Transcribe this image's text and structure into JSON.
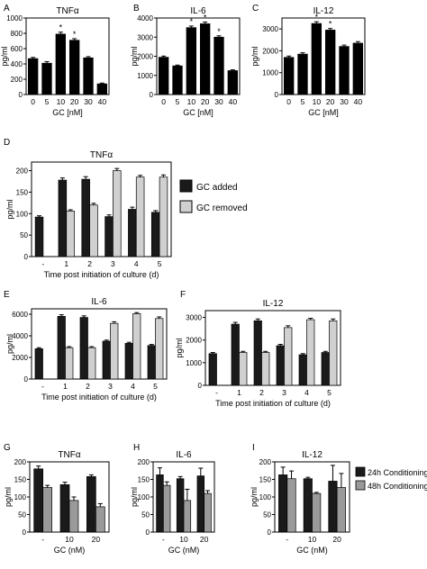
{
  "figure": {
    "legend_d": {
      "added": "GC added",
      "removed": "GC removed",
      "added_color": "#1a1a1a",
      "removed_color": "#d0d0d0"
    },
    "legend_g": {
      "c24": "24h Conditioning",
      "c48": "48h Conditioning",
      "c24_color": "#1a1a1a",
      "c48_color": "#9a9a9a"
    }
  },
  "chart_data": [
    {
      "panel": "A",
      "type": "bar",
      "title": "TNFα",
      "xlabel": "GC [nM]",
      "ylabel": "pg/ml",
      "categories": [
        "0",
        "5",
        "10",
        "20",
        "30",
        "40"
      ],
      "ylim": [
        0,
        1000
      ],
      "yticks": [
        0,
        200,
        400,
        600,
        800,
        1000
      ],
      "values": [
        470,
        410,
        790,
        710,
        480,
        140
      ],
      "errors": [
        15,
        20,
        25,
        20,
        15,
        10
      ],
      "stars": [
        "",
        "",
        "*",
        "*",
        "",
        ""
      ],
      "colors": [
        "#000000"
      ]
    },
    {
      "panel": "B",
      "type": "bar",
      "title": "IL-6",
      "xlabel": "GC [nM]",
      "ylabel": "pg/ml",
      "categories": [
        "0",
        "5",
        "10",
        "20",
        "30",
        "40"
      ],
      "ylim": [
        0,
        4000
      ],
      "yticks": [
        0,
        1000,
        2000,
        3000,
        4000
      ],
      "values": [
        1950,
        1500,
        3500,
        3700,
        3000,
        1250
      ],
      "errors": [
        60,
        40,
        80,
        90,
        70,
        40
      ],
      "stars": [
        "",
        "",
        "*",
        "*",
        "*",
        ""
      ],
      "colors": [
        "#000000"
      ]
    },
    {
      "panel": "C",
      "type": "bar",
      "title": "IL-12",
      "xlabel": "GC [nM]",
      "ylabel": "pg/ml",
      "categories": [
        "0",
        "5",
        "10",
        "20",
        "30",
        "40"
      ],
      "ylim": [
        0,
        3500
      ],
      "yticks": [
        0,
        1000,
        2000,
        3000
      ],
      "values": [
        1700,
        1850,
        3250,
        2950,
        2200,
        2350
      ],
      "errors": [
        60,
        60,
        80,
        70,
        60,
        70
      ],
      "stars": [
        "",
        "",
        "*",
        "*",
        "",
        ""
      ],
      "colors": [
        "#000000"
      ]
    },
    {
      "panel": "D",
      "type": "bar",
      "title": "TNFα",
      "xlabel": "Time post initiation of culture (d)",
      "ylabel": "pg/ml",
      "categories": [
        "-",
        "1",
        "2",
        "3",
        "4",
        "5"
      ],
      "ylim": [
        0,
        220
      ],
      "yticks": [
        0,
        50,
        100,
        150,
        200
      ],
      "series": [
        {
          "name": "GC added",
          "color": "#1a1a1a",
          "values": [
            92,
            178,
            180,
            93,
            110,
            103
          ],
          "errors": [
            3,
            5,
            6,
            4,
            5,
            4
          ]
        },
        {
          "name": "GC removed",
          "color": "#d0d0d0",
          "values": [
            null,
            106,
            120,
            200,
            185,
            185
          ],
          "errors": [
            null,
            3,
            4,
            5,
            4,
            5
          ]
        }
      ]
    },
    {
      "panel": "E",
      "type": "bar",
      "title": "IL-6",
      "xlabel": "Time post initiation of culture (d)",
      "ylabel": "pg/ml",
      "categories": [
        "-",
        "1",
        "2",
        "3",
        "4",
        "5"
      ],
      "ylim": [
        0,
        6500
      ],
      "yticks": [
        0,
        2000,
        4000,
        6000
      ],
      "series": [
        {
          "name": "GC added",
          "color": "#1a1a1a",
          "values": [
            2800,
            5800,
            5700,
            3500,
            3300,
            3100
          ],
          "errors": [
            100,
            150,
            150,
            100,
            100,
            100
          ]
        },
        {
          "name": "GC removed",
          "color": "#d0d0d0",
          "values": [
            null,
            2900,
            2900,
            5150,
            6050,
            5600
          ],
          "errors": [
            null,
            100,
            100,
            150,
            100,
            150
          ]
        }
      ]
    },
    {
      "panel": "F",
      "type": "bar",
      "title": "IL-12",
      "xlabel": "Time post initiation of culture (d)",
      "ylabel": "pg/ml",
      "categories": [
        "-",
        "1",
        "2",
        "3",
        "4",
        "5"
      ],
      "ylim": [
        0,
        3300
      ],
      "yticks": [
        0,
        1000,
        2000,
        3000
      ],
      "series": [
        {
          "name": "GC added",
          "color": "#1a1a1a",
          "values": [
            1400,
            2700,
            2850,
            1750,
            1350,
            1450
          ],
          "errors": [
            50,
            80,
            80,
            60,
            50,
            50
          ]
        },
        {
          "name": "GC removed",
          "color": "#d0d0d0",
          "values": [
            null,
            1450,
            1450,
            2550,
            2900,
            2850
          ],
          "errors": [
            null,
            50,
            50,
            80,
            60,
            80
          ]
        }
      ]
    },
    {
      "panel": "G",
      "type": "bar",
      "title": "TNFα",
      "xlabel": "GC (nM)",
      "ylabel": "pg/ml",
      "categories": [
        "-",
        "10",
        "20"
      ],
      "ylim": [
        0,
        200
      ],
      "yticks": [
        0,
        50,
        100,
        150,
        200
      ],
      "series": [
        {
          "name": "24h Conditioning",
          "color": "#1a1a1a",
          "values": [
            180,
            135,
            158
          ],
          "errors": [
            8,
            7,
            5
          ]
        },
        {
          "name": "48h Conditioning",
          "color": "#9a9a9a",
          "values": [
            127,
            90,
            72
          ],
          "errors": [
            6,
            10,
            9
          ]
        }
      ]
    },
    {
      "panel": "H",
      "type": "bar",
      "title": "IL-6",
      "xlabel": "GC (nM)",
      "ylabel": "pg/ml",
      "categories": [
        "-",
        "10",
        "20"
      ],
      "ylim": [
        0,
        200
      ],
      "yticks": [
        0,
        50,
        100,
        150,
        200
      ],
      "series": [
        {
          "name": "24h Conditioning",
          "color": "#1a1a1a",
          "values": [
            163,
            152,
            160
          ],
          "errors": [
            20,
            6,
            22
          ]
        },
        {
          "name": "48h Conditioning",
          "color": "#9a9a9a",
          "values": [
            133,
            90,
            110
          ],
          "errors": [
            10,
            32,
            8
          ]
        }
      ]
    },
    {
      "panel": "I",
      "type": "bar",
      "title": "IL-12",
      "xlabel": "GC (nM)",
      "ylabel": "pg/ml",
      "categories": [
        "-",
        "10",
        "20"
      ],
      "ylim": [
        0,
        200
      ],
      "yticks": [
        0,
        50,
        100,
        150,
        200
      ],
      "series": [
        {
          "name": "24h Conditioning",
          "color": "#1a1a1a",
          "values": [
            163,
            152,
            145
          ],
          "errors": [
            22,
            4,
            45
          ]
        },
        {
          "name": "48h Conditioning",
          "color": "#9a9a9a",
          "values": [
            152,
            110,
            127
          ],
          "errors": [
            22,
            3,
            40
          ]
        }
      ]
    }
  ]
}
